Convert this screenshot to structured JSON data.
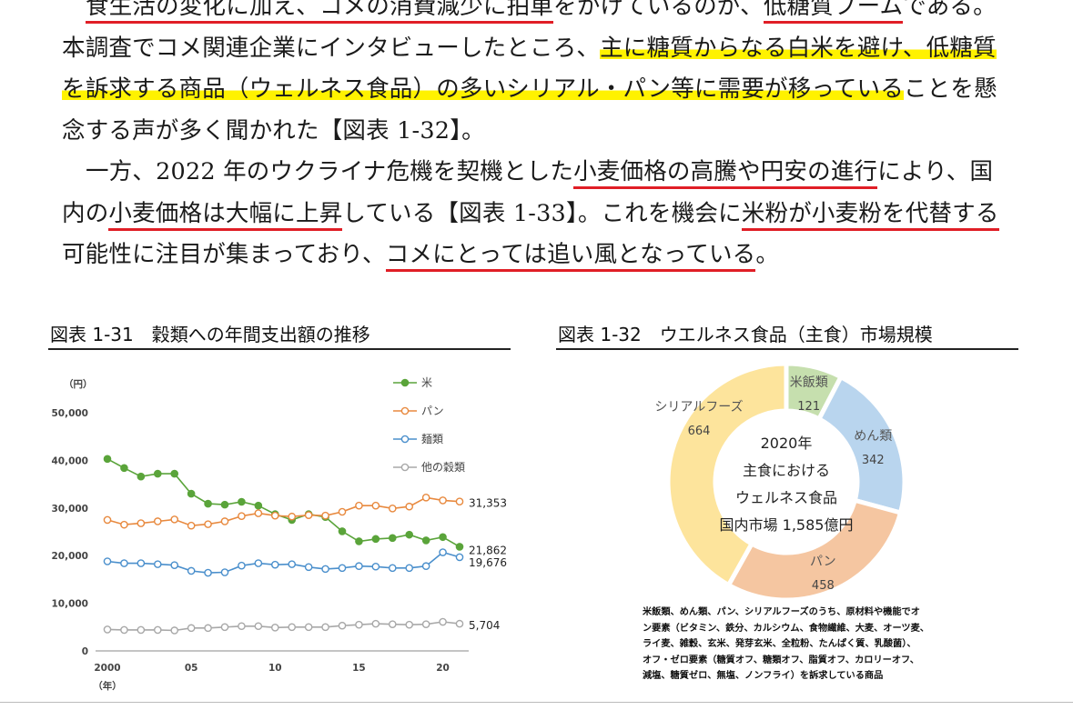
{
  "paragraph1": {
    "l1_a": "食生活の変化に加え、コメの消費減少に拍車",
    "l1_b": "をかけているのが、",
    "l1_c": "低糖質ブーム",
    "l1_d": "である。",
    "l2_a": "本調査でコメ関連企業にインタビューしたところ、",
    "l2_b": "主に糖質からなる白米を避け、低糖質",
    "l3_a": "を訴求する商品（ウェルネス食品）の多いシリアル・パン等に需要が移っている",
    "l3_b": "ことを懸",
    "l4": "念する声が多く聞かれた【図表 1-32】。"
  },
  "paragraph2": {
    "l1_a": "一方、2022 年のウクライナ危機を契機とした",
    "l1_b": "小麦価格の高騰や円安の進行",
    "l1_c": "により、国",
    "l2_a": "内の",
    "l2_b": "小麦価格は大幅に上昇",
    "l2_c": "している【図表 1-33】。これを機会に",
    "l2_d": "米粉が小麦粉を代替する",
    "l3_a": "可能性に注目が集まっており、",
    "l3_b": "コメにとっては追い風となっている",
    "l3_c": "。"
  },
  "figure31": {
    "title": "図表 1-31　穀類への年間支出額の推移"
  },
  "figure32": {
    "title": "図表 1-32　ウエルネス食品（主食）市場規模",
    "center": {
      "l1": "2020年",
      "l2": "主食における",
      "l3": "ウェルネス食品",
      "l4": "国内市場 1,585億円"
    },
    "note": [
      "米飯類、めん類、パン、シリアルフーズのうち、原材料や機能でオ",
      "ン要素（ビタミン、鉄分、カルシウム、食物繊維、大麦、オーツ麦、",
      "ライ麦、雑穀、玄米、発芽玄米、全粒粉、たんぱく質、乳酸菌）、",
      "オフ・ゼロ要素（糖質オフ、糖類オフ、脂質オフ、カロリーオフ、",
      "減塩、糖質ゼロ、無塩、ノンフライ）を訴求している商品"
    ]
  },
  "chart_data": [
    {
      "type": "line",
      "ylabel": "（円）",
      "xlabel": "（年）",
      "ylim": [
        0,
        50000
      ],
      "yticks": [
        "0",
        "10,000",
        "20,000",
        "30,000",
        "40,000",
        "50,000"
      ],
      "xticks": [
        "2000",
        "05",
        "10",
        "15",
        "20"
      ],
      "legend_position": "top-right",
      "x": [
        2000,
        2001,
        2002,
        2003,
        2004,
        2005,
        2006,
        2007,
        2008,
        2009,
        2010,
        2011,
        2012,
        2013,
        2014,
        2015,
        2016,
        2017,
        2018,
        2019,
        2020,
        2021
      ],
      "series": [
        {
          "name": "米",
          "color": "#5aa43a",
          "filled": true,
          "end_label": "21,862",
          "values": [
            40300,
            38400,
            36600,
            37200,
            37200,
            33000,
            30900,
            30700,
            31300,
            30500,
            28700,
            27500,
            28700,
            28100,
            25100,
            23000,
            23500,
            23700,
            24400,
            23200,
            23900,
            21862
          ]
        },
        {
          "name": "パン",
          "color": "#e8893e",
          "filled": false,
          "end_label": "31,353",
          "values": [
            27500,
            26500,
            26800,
            27200,
            27600,
            26300,
            26600,
            27200,
            28300,
            28900,
            28400,
            28200,
            28500,
            28400,
            29200,
            30500,
            30500,
            29900,
            30300,
            32200,
            31600,
            31353
          ]
        },
        {
          "name": "麺類",
          "color": "#4a8fcc",
          "filled": false,
          "end_label": "19,676",
          "values": [
            18800,
            18400,
            18400,
            18200,
            18000,
            16800,
            16400,
            16500,
            17900,
            18400,
            18100,
            18200,
            17600,
            17200,
            17400,
            17800,
            17700,
            17400,
            17400,
            17800,
            20700,
            19676
          ]
        },
        {
          "name": "他の穀類",
          "color": "#a8a8a8",
          "filled": false,
          "end_label": "5,704",
          "values": [
            4500,
            4400,
            4400,
            4400,
            4300,
            4800,
            4800,
            5000,
            5200,
            5200,
            4900,
            5000,
            5000,
            5000,
            5300,
            5500,
            5700,
            5600,
            5500,
            5600,
            6100,
            5704
          ]
        }
      ]
    },
    {
      "type": "pie",
      "variant": "donut",
      "unit": "億円",
      "slices": [
        {
          "label": "米飯類",
          "value": 121,
          "color": "#c6dfae"
        },
        {
          "label": "めん類",
          "value": 342,
          "color": "#b9d5ee"
        },
        {
          "label": "パン",
          "value": 458,
          "color": "#f5c6a1"
        },
        {
          "label": "シリアルフーズ",
          "value": 664,
          "color": "#fde49c"
        }
      ]
    }
  ]
}
